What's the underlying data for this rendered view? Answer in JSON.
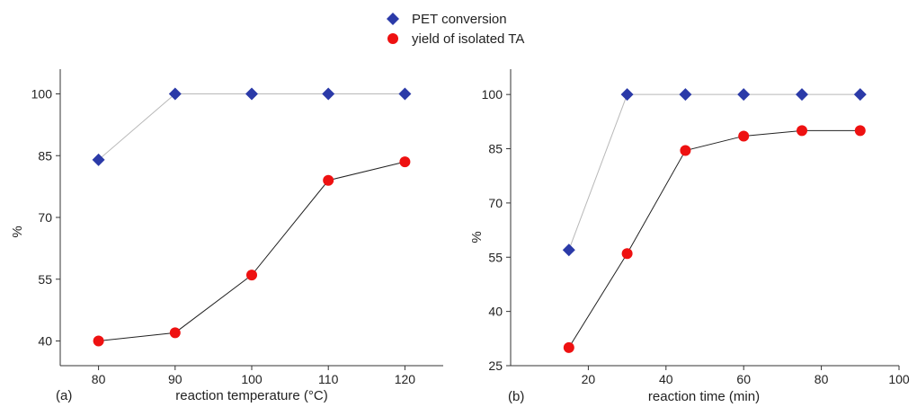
{
  "legend": {
    "entries": [
      {
        "label": "PET conversion",
        "marker": "diamond",
        "color": "#2b3aa8"
      },
      {
        "label": "yield of isolated TA",
        "marker": "circle",
        "color": "#ee1111"
      }
    ],
    "placement": "top-center"
  },
  "colors": {
    "pet_marker": "#2b3aa8",
    "ta_marker": "#ee1111",
    "pet_line": "#b8b8b8",
    "ta_line": "#222222",
    "axis": "#333333"
  },
  "chart_data": [
    {
      "type": "line",
      "panel_label": "(a)",
      "xlabel": "reaction temperature (°C)",
      "ylabel": "%",
      "xlim": [
        75,
        125
      ],
      "ylim": [
        34,
        106
      ],
      "xticks": [
        80,
        90,
        100,
        110,
        120
      ],
      "yticks": [
        40,
        55,
        70,
        85,
        100
      ],
      "grid": false,
      "x": [
        80,
        90,
        100,
        110,
        120
      ],
      "series": [
        {
          "name": "PET conversion",
          "marker": "diamond",
          "values": [
            84,
            100,
            100,
            100,
            100
          ]
        },
        {
          "name": "yield of isolated TA",
          "marker": "circle",
          "values": [
            40,
            42,
            56,
            79,
            83.5
          ]
        }
      ]
    },
    {
      "type": "line",
      "panel_label": "(b)",
      "xlabel": "reaction time (min)",
      "ylabel": "%",
      "xlim": [
        0,
        100
      ],
      "ylim": [
        25,
        107
      ],
      "xticks": [
        20,
        40,
        60,
        80,
        100
      ],
      "yticks": [
        25,
        40,
        55,
        70,
        85,
        100
      ],
      "grid": false,
      "x": [
        15,
        30,
        45,
        60,
        75,
        90
      ],
      "series": [
        {
          "name": "PET conversion",
          "marker": "diamond",
          "values": [
            57,
            100,
            100,
            100,
            100,
            100
          ]
        },
        {
          "name": "yield of isolated TA",
          "marker": "circle",
          "values": [
            30,
            56,
            84.5,
            88.5,
            90,
            90
          ]
        }
      ]
    }
  ]
}
